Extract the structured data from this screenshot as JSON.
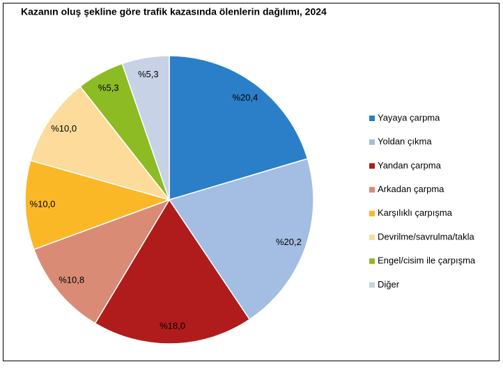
{
  "chart_data": {
    "type": "pie",
    "title": "Kazanın oluş şekline göre trafik kazasında ölenlerin dağılımı, 2024",
    "categories": [
      "Yayaya çarpma",
      "Yoldan çıkma",
      "Yandan çarpma",
      "Arkadan çarpma",
      "Karşılıklı çarpışma",
      "Devrilme/savrulma/takla",
      "Engel/cisim ile çarpışma",
      "Diğer"
    ],
    "values": [
      20.4,
      20.2,
      18.0,
      10.8,
      10.0,
      10.0,
      5.3,
      5.3
    ],
    "value_labels": [
      "%20,4",
      "%20,2",
      "%18,0",
      "%10,8",
      "%10,0",
      "%10,0",
      "%5,3",
      "%5,3"
    ],
    "colors": [
      "#2a7fc8",
      "#a3bde3",
      "#b01c1c",
      "#d98b75",
      "#fbb826",
      "#fcdb9b",
      "#8cbb23",
      "#c7d2e6"
    ],
    "legend": "right"
  }
}
